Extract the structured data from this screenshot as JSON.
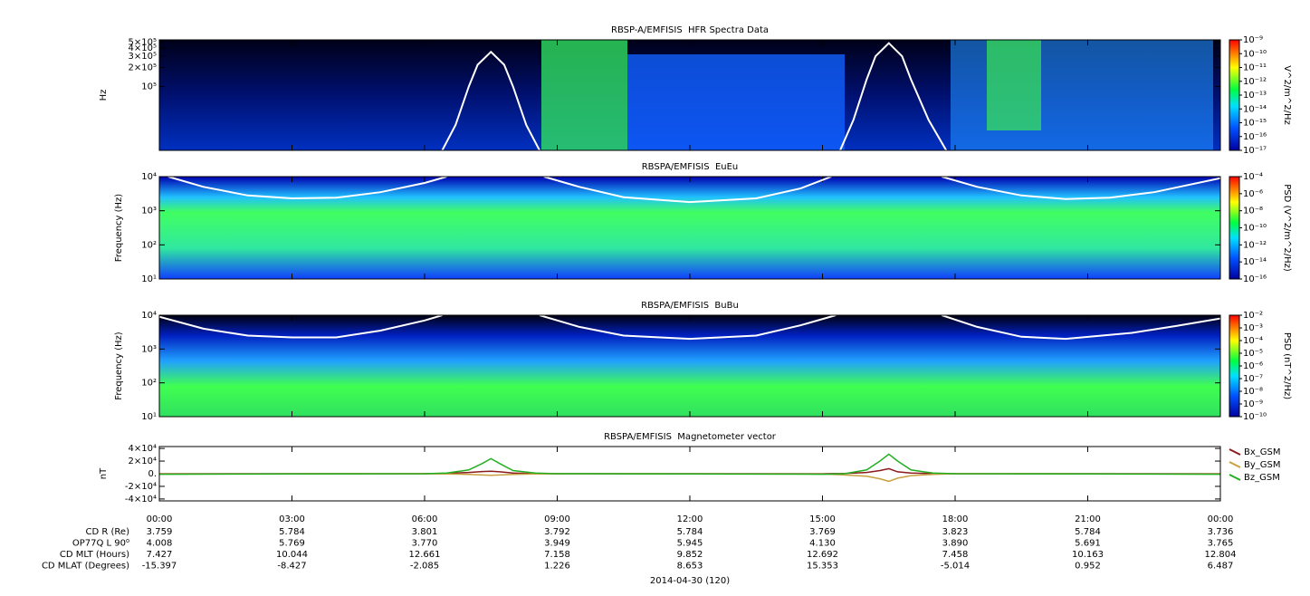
{
  "chart_data": [
    {
      "type": "spectrogram",
      "title": "RBSP-A/EMFISIS  HFR Spectra Data",
      "ylabel": "Hz",
      "yscale": "log",
      "xlim": [
        0,
        24
      ],
      "ylim": [
        10000,
        540000
      ],
      "yticks": [
        {
          "value": 500000,
          "label": "5×10⁵"
        },
        {
          "value": 400000,
          "label": "4×10⁵"
        },
        {
          "value": 300000,
          "label": "3×10⁵"
        },
        {
          "value": 200000,
          "label": "2×10⁵"
        },
        {
          "value": 100000,
          "label": "10⁵"
        }
      ],
      "colorbar": {
        "label": "V^2/m^2/Hz",
        "lim": [
          1e-17,
          1e-09
        ],
        "ticks": [
          {
            "value": 1e-09,
            "label": "10⁻⁹"
          },
          {
            "value": 1e-10,
            "label": "10⁻¹⁰"
          },
          {
            "value": 1e-11,
            "label": "10⁻¹¹"
          },
          {
            "value": 1e-12,
            "label": "10⁻¹²"
          },
          {
            "value": 1e-13,
            "label": "10⁻¹³"
          },
          {
            "value": 1e-14,
            "label": "10⁻¹⁴"
          },
          {
            "value": 1e-15,
            "label": "10⁻¹⁵"
          },
          {
            "value": 1e-16,
            "label": "10⁻¹⁶"
          },
          {
            "value": 1e-17,
            "label": "10⁻¹⁷"
          }
        ]
      },
      "curve": {
        "color": "#ffffff",
        "x": [
          6.4,
          6.7,
          7.0,
          7.2,
          7.5,
          7.8,
          8.0,
          8.3,
          8.6,
          12,
          15.4,
          15.7,
          16.0,
          16.2,
          16.5,
          16.8,
          17.0,
          17.4,
          17.8
        ],
        "values": [
          10000,
          25000,
          100000,
          220000,
          350000,
          220000,
          100000,
          25000,
          10000,
          null,
          10000,
          30000,
          130000,
          300000,
          480000,
          300000,
          130000,
          30000,
          10000
        ]
      }
    },
    {
      "type": "spectrogram",
      "title": "RBSPA/EMFISIS  EuEu",
      "ylabel": "Frequency (Hz)",
      "yscale": "log",
      "xlim": [
        0,
        24
      ],
      "ylim": [
        10,
        10000
      ],
      "yticks": [
        {
          "value": 10,
          "label": "10¹"
        },
        {
          "value": 100,
          "label": "10²"
        },
        {
          "value": 1000,
          "label": "10³"
        },
        {
          "value": 10000,
          "label": "10⁴"
        }
      ],
      "colorbar": {
        "label": "PSD (V^2/m^2/Hz)",
        "lim": [
          1e-16,
          0.0001
        ],
        "ticks": [
          {
            "value": 0.0001,
            "label": "10⁻⁴"
          },
          {
            "value": 1e-06,
            "label": "10⁻⁶"
          },
          {
            "value": 1e-08,
            "label": "10⁻⁸"
          },
          {
            "value": 1e-10,
            "label": "10⁻¹⁰"
          },
          {
            "value": 1e-12,
            "label": "10⁻¹²"
          },
          {
            "value": 1e-14,
            "label": "10⁻¹⁴"
          },
          {
            "value": 1e-16,
            "label": "10⁻¹⁶"
          }
        ]
      },
      "curve": {
        "color": "#ffffff",
        "x": [
          0.2,
          1,
          2,
          3,
          4,
          5,
          6,
          6.5,
          7.5,
          8.7,
          9.5,
          10.5,
          12,
          13.5,
          14.5,
          15.2,
          16.5,
          17.7,
          18.5,
          19.5,
          20.5,
          21.5,
          22.5,
          24
        ],
        "values": [
          10000,
          5000,
          2800,
          2300,
          2400,
          3500,
          6500,
          10000,
          null,
          10000,
          5000,
          2500,
          1800,
          2300,
          4500,
          10000,
          null,
          10000,
          5000,
          2800,
          2200,
          2400,
          3500,
          9000
        ]
      }
    },
    {
      "type": "spectrogram",
      "title": "RBSPA/EMFISIS  BuBu",
      "ylabel": "Frequency (Hz)",
      "yscale": "log",
      "xlim": [
        0,
        24
      ],
      "ylim": [
        10,
        10000
      ],
      "yticks": [
        {
          "value": 10,
          "label": "10¹"
        },
        {
          "value": 100,
          "label": "10²"
        },
        {
          "value": 1000,
          "label": "10³"
        },
        {
          "value": 10000,
          "label": "10⁴"
        }
      ],
      "colorbar": {
        "label": "PSD (nT^2/Hz)",
        "lim": [
          1e-10,
          0.01
        ],
        "ticks": [
          {
            "value": 0.01,
            "label": "10⁻²"
          },
          {
            "value": 0.001,
            "label": "10⁻³"
          },
          {
            "value": 0.0001,
            "label": "10⁻⁴"
          },
          {
            "value": 1e-05,
            "label": "10⁻⁵"
          },
          {
            "value": 1e-06,
            "label": "10⁻⁶"
          },
          {
            "value": 1e-07,
            "label": "10⁻⁷"
          },
          {
            "value": 1e-08,
            "label": "10⁻⁸"
          },
          {
            "value": 1e-09,
            "label": "10⁻⁹"
          },
          {
            "value": 1e-10,
            "label": "10⁻¹⁰"
          }
        ]
      },
      "curve": {
        "color": "#ffffff",
        "x": [
          0,
          1,
          2,
          3,
          4,
          5,
          6,
          6.4,
          7.5,
          8.6,
          9.5,
          10.5,
          12,
          13.5,
          14.5,
          15.3,
          16.5,
          17.7,
          18.5,
          19.5,
          20.5,
          22,
          23,
          24
        ],
        "values": [
          9000,
          4000,
          2500,
          2200,
          2200,
          3500,
          7000,
          10000,
          null,
          10000,
          4500,
          2500,
          2000,
          2500,
          5000,
          10000,
          null,
          10000,
          4500,
          2300,
          2000,
          3000,
          4800,
          8000
        ]
      }
    },
    {
      "type": "line",
      "title": "RBSPA/EMFISIS  Magnetometer vector",
      "ylabel": "nT",
      "xlabel": "2014-04-30 (120)",
      "xlim": [
        0,
        24
      ],
      "xticks": [
        {
          "value": 0,
          "label": "00:00"
        },
        {
          "value": 3,
          "label": "03:00"
        },
        {
          "value": 6,
          "label": "06:00"
        },
        {
          "value": 9,
          "label": "09:00"
        },
        {
          "value": 12,
          "label": "12:00"
        },
        {
          "value": 15,
          "label": "15:00"
        },
        {
          "value": 18,
          "label": "18:00"
        },
        {
          "value": 21,
          "label": "21:00"
        },
        {
          "value": 24,
          "label": "00:00"
        }
      ],
      "ylim": [
        -43000,
        43000
      ],
      "yticks": [
        {
          "value": 40000,
          "label": "4×10⁴"
        },
        {
          "value": 20000,
          "label": "2×10⁴"
        },
        {
          "value": 0,
          "label": "0."
        },
        {
          "value": -20000,
          "label": "-2×10⁴"
        },
        {
          "value": -40000,
          "label": "-4×10⁴"
        }
      ],
      "x": [
        0,
        3,
        6,
        6.5,
        7,
        7.3,
        7.5,
        7.7,
        8,
        8.5,
        9,
        12,
        15,
        15.5,
        16,
        16.3,
        16.5,
        16.7,
        17,
        17.5,
        18,
        21,
        24
      ],
      "series": [
        {
          "name": "Bx_GSM",
          "color": "#8b1a1a",
          "values": [
            0,
            0,
            0,
            500,
            2000,
            3500,
            4000,
            3000,
            1000,
            200,
            0,
            0,
            0,
            500,
            2000,
            5000,
            8000,
            3000,
            1000,
            500,
            0,
            0,
            0
          ]
        },
        {
          "name": "By_GSM",
          "color": "#c8a040",
          "values": [
            -500,
            -200,
            0,
            -300,
            -1000,
            -2000,
            -2500,
            -2000,
            -1000,
            -300,
            0,
            -200,
            -500,
            -2000,
            -4000,
            -8000,
            -12000,
            -7000,
            -3000,
            -1000,
            0,
            -200,
            -500
          ]
        },
        {
          "name": "Bz_GSM",
          "color": "#22b022",
          "values": [
            -800,
            -300,
            0,
            1000,
            6000,
            16000,
            24000,
            16000,
            5000,
            1000,
            0,
            -300,
            -800,
            0,
            6000,
            20000,
            31000,
            20000,
            6000,
            1000,
            0,
            -300,
            -800
          ]
        }
      ]
    }
  ],
  "ephemeris": {
    "rows": [
      {
        "label": "CD R (Re)",
        "values": [
          "3.759",
          "5.784",
          "3.801",
          "3.792",
          "5.784",
          "3.769",
          "3.823",
          "5.784",
          "3.736"
        ]
      },
      {
        "label": "OP77Q L 90⁰",
        "values": [
          "4.008",
          "5.769",
          "3.770",
          "3.949",
          "5.945",
          "4.130",
          "3.890",
          "5.691",
          "3.765"
        ]
      },
      {
        "label": "CD MLT (Hours)",
        "values": [
          "7.427",
          "10.044",
          "12.661",
          "7.158",
          "9.852",
          "12.692",
          "7.458",
          "10.163",
          "12.804"
        ]
      },
      {
        "label": "CD MLAT (Degrees)",
        "values": [
          "-15.397",
          "-8.427",
          "-2.085",
          "1.226",
          "8.653",
          "15.353",
          "-5.014",
          "0.952",
          "6.487"
        ]
      }
    ]
  }
}
